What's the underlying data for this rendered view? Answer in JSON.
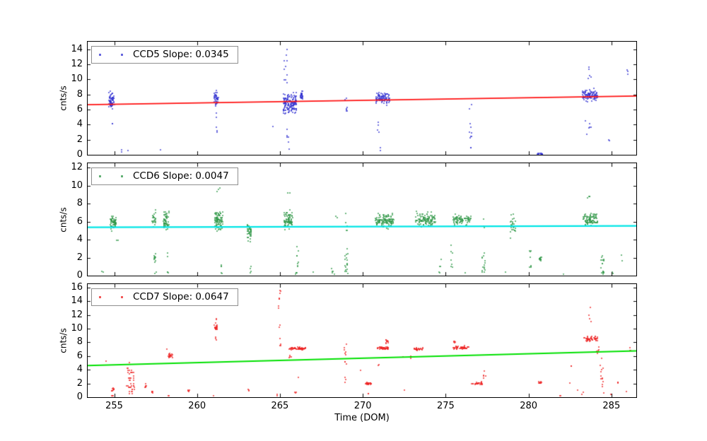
{
  "chart_data": {
    "type": "scatter",
    "title": "",
    "x_axis": {
      "label": "Time (DOM)",
      "min": 253.4,
      "max": 286.5,
      "ticks": [
        255,
        260,
        265,
        270,
        275,
        280,
        285
      ]
    },
    "grid": false,
    "legend_position": "upper-left",
    "panels": [
      {
        "id": "ccd5",
        "legend": "CCD5 Slope: 0.0345",
        "slope": 0.0345,
        "ylabel": "cnts/s",
        "ymin": 0,
        "ymax": 15,
        "yticks": [
          0,
          2,
          4,
          6,
          8,
          10,
          12,
          14
        ],
        "marker_color": "#3232d2",
        "fit_line": {
          "color": "#ff1212",
          "width": 1.7,
          "y_at_xmin": 6.65,
          "y_at_xmax": 7.8
        },
        "clusters": [
          [
            254.85,
            0.18,
            7.2,
            1.0,
            65,
            "g"
          ],
          [
            254.9,
            0.08,
            4.0,
            0.3,
            2,
            "u"
          ],
          [
            255.45,
            0.05,
            0.6,
            0.3,
            2,
            "u"
          ],
          [
            255.8,
            0.02,
            0.55,
            0.1,
            1,
            "g"
          ],
          [
            257.8,
            0.03,
            0.5,
            0.15,
            1,
            "g"
          ],
          [
            261.15,
            0.13,
            7.6,
            0.95,
            40,
            "g"
          ],
          [
            261.15,
            0.07,
            4.2,
            1.6,
            5,
            "u"
          ],
          [
            264.6,
            0.04,
            3.7,
            0.2,
            1,
            "g"
          ],
          [
            265.6,
            0.42,
            6.8,
            1.35,
            150,
            "g"
          ],
          [
            265.35,
            0.1,
            11.8,
            2.5,
            10,
            "u"
          ],
          [
            265.5,
            0.1,
            1.9,
            1.7,
            6,
            "u"
          ],
          [
            266.3,
            0.07,
            7.9,
            0.55,
            30,
            "g"
          ],
          [
            269.0,
            0.06,
            6.2,
            3.3,
            7,
            "u"
          ],
          [
            271.2,
            0.42,
            7.5,
            0.8,
            90,
            "g"
          ],
          [
            270.95,
            0.08,
            3.6,
            0.8,
            4,
            "u"
          ],
          [
            271.05,
            0.04,
            0.7,
            0.3,
            2,
            "u"
          ],
          [
            276.5,
            0.06,
            3.0,
            2.5,
            9,
            "u"
          ],
          [
            276.5,
            0.05,
            6.3,
            0.5,
            2,
            "u"
          ],
          [
            283.7,
            0.45,
            7.9,
            0.72,
            95,
            "g"
          ],
          [
            283.7,
            0.1,
            11.0,
            1.2,
            5,
            "u"
          ],
          [
            286.0,
            0.12,
            10.8,
            0.9,
            3,
            "u"
          ],
          [
            283.6,
            0.25,
            3.0,
            1.7,
            6,
            "u"
          ],
          [
            280.7,
            0.16,
            0.12,
            0.08,
            14,
            "g"
          ],
          [
            284.9,
            0.05,
            1.5,
            0.6,
            2,
            "u"
          ]
        ]
      },
      {
        "id": "ccd6",
        "legend": "CCD6 Slope: 0.0047",
        "slope": 0.0047,
        "ylabel": "cnts/s",
        "ymin": 0,
        "ymax": 12.5,
        "yticks": [
          0,
          2,
          4,
          6,
          8,
          10,
          12
        ],
        "marker_color": "#2e9646",
        "fit_line": {
          "color": "#00e5e5",
          "width": 2.2,
          "y_at_xmin": 5.38,
          "y_at_xmax": 5.54
        },
        "clusters": [
          [
            254.3,
            0.05,
            0.35,
            0.2,
            2,
            "u"
          ],
          [
            254.95,
            0.17,
            6.0,
            0.8,
            60,
            "g"
          ],
          [
            255.2,
            0.05,
            3.85,
            0.15,
            2,
            "u"
          ],
          [
            257.4,
            0.1,
            6.4,
            0.9,
            22,
            "g"
          ],
          [
            257.45,
            0.07,
            1.9,
            0.5,
            12,
            "g"
          ],
          [
            257.5,
            0.04,
            0.4,
            0.2,
            2,
            "u"
          ],
          [
            258.15,
            0.17,
            6.2,
            1.05,
            55,
            "g"
          ],
          [
            258.2,
            0.08,
            1.4,
            1.2,
            5,
            "u"
          ],
          [
            261.3,
            0.24,
            6.1,
            1.15,
            85,
            "g"
          ],
          [
            261.3,
            0.1,
            9.6,
            0.35,
            3,
            "u"
          ],
          [
            261.45,
            0.06,
            0.8,
            0.65,
            5,
            "u"
          ],
          [
            263.15,
            0.12,
            4.8,
            0.95,
            45,
            "g"
          ],
          [
            263.2,
            0.06,
            0.7,
            0.5,
            4,
            "u"
          ],
          [
            265.5,
            0.26,
            6.3,
            1.05,
            75,
            "g"
          ],
          [
            265.5,
            0.1,
            9.3,
            0.3,
            2,
            "u"
          ],
          [
            266.05,
            0.05,
            1.8,
            1.6,
            8,
            "u"
          ],
          [
            266.0,
            0.06,
            0.3,
            0.2,
            5,
            "g"
          ],
          [
            267.0,
            0.04,
            0.3,
            0.15,
            1,
            "g"
          ],
          [
            268.15,
            0.06,
            0.6,
            0.45,
            4,
            "u"
          ],
          [
            268.4,
            0.05,
            6.6,
            0.4,
            2,
            "u"
          ],
          [
            268.3,
            0.04,
            0.25,
            0.12,
            1,
            "g"
          ],
          [
            269.0,
            0.1,
            1.6,
            1.4,
            18,
            "u"
          ],
          [
            269.0,
            0.06,
            6.0,
            1.0,
            5,
            "u"
          ],
          [
            271.3,
            0.55,
            6.1,
            0.68,
            120,
            "g"
          ],
          [
            273.8,
            0.6,
            6.2,
            0.68,
            110,
            "g"
          ],
          [
            274.65,
            0.07,
            1.0,
            0.8,
            5,
            "u"
          ],
          [
            276.0,
            0.55,
            6.2,
            0.62,
            80,
            "g"
          ],
          [
            275.35,
            0.08,
            2.1,
            1.3,
            7,
            "u"
          ],
          [
            276.15,
            0.04,
            0.3,
            0.15,
            1,
            "g"
          ],
          [
            277.3,
            0.12,
            1.7,
            1.4,
            14,
            "u"
          ],
          [
            277.3,
            0.06,
            5.9,
            0.6,
            3,
            "u"
          ],
          [
            278.6,
            0.04,
            0.5,
            0.25,
            1,
            "g"
          ],
          [
            279.05,
            0.15,
            5.6,
            1.15,
            25,
            "g"
          ],
          [
            280.1,
            0.06,
            1.6,
            1.2,
            8,
            "u"
          ],
          [
            280.7,
            0.07,
            1.85,
            0.3,
            12,
            "g"
          ],
          [
            282.1,
            0.04,
            0.4,
            0.2,
            1,
            "g"
          ],
          [
            283.75,
            0.45,
            6.2,
            0.68,
            90,
            "g"
          ],
          [
            283.6,
            0.12,
            8.7,
            0.45,
            4,
            "u"
          ],
          [
            284.45,
            0.1,
            1.3,
            1.0,
            12,
            "u"
          ],
          [
            284.5,
            0.06,
            0.3,
            0.18,
            6,
            "g"
          ],
          [
            285.1,
            0.05,
            0.5,
            0.35,
            2,
            "u"
          ],
          [
            285.6,
            0.06,
            2.0,
            0.4,
            2,
            "u"
          ]
        ]
      },
      {
        "id": "ccd7",
        "legend": "CCD7 Slope: 0.0647",
        "slope": 0.0647,
        "ylabel": "cnts/s",
        "ymin": 0,
        "ymax": 16.5,
        "yticks": [
          0,
          2,
          4,
          6,
          8,
          10,
          12,
          14,
          16
        ],
        "marker_color": "#ee2020",
        "fit_line": {
          "color": "#00e000",
          "width": 1.9,
          "y_at_xmin": 4.62,
          "y_at_xmax": 6.76
        },
        "clusters": [
          [
            254.5,
            0.03,
            5.3,
            0.2,
            1,
            "g"
          ],
          [
            254.95,
            0.1,
            1.1,
            0.25,
            10,
            "g"
          ],
          [
            254.9,
            0.05,
            0.15,
            0.08,
            3,
            "g"
          ],
          [
            255.9,
            0.03,
            5.15,
            0.1,
            1,
            "g"
          ],
          [
            256.0,
            0.25,
            2.4,
            1.9,
            40,
            "u",
            0.28
          ],
          [
            256.9,
            0.06,
            1.6,
            0.4,
            6,
            "u"
          ],
          [
            257.3,
            0.05,
            0.75,
            0.12,
            6,
            "g"
          ],
          [
            257.0,
            0.03,
            4.85,
            0.1,
            1,
            "g"
          ],
          [
            258.2,
            0.03,
            7.0,
            0.2,
            1,
            "g"
          ],
          [
            258.4,
            0.14,
            6.1,
            0.38,
            18,
            "g"
          ],
          [
            258.3,
            0.05,
            0.3,
            0.15,
            2,
            "u"
          ],
          [
            259.5,
            0.06,
            0.85,
            0.15,
            5,
            "g"
          ],
          [
            261.0,
            0.03,
            0.22,
            0.1,
            1,
            "g"
          ],
          [
            261.15,
            0.1,
            10.2,
            0.3,
            20,
            "g"
          ],
          [
            261.15,
            0.05,
            11.2,
            0.5,
            3,
            "u"
          ],
          [
            260.97,
            0.06,
            15.6,
            0.7,
            3,
            "u"
          ],
          [
            261.15,
            0.04,
            8.2,
            1.0,
            3,
            "u"
          ],
          [
            263.1,
            0.05,
            1.0,
            0.2,
            3,
            "g"
          ],
          [
            264.85,
            0.04,
            0.3,
            0.12,
            2,
            "g"
          ],
          [
            264.95,
            0.1,
            14.4,
            1.7,
            8,
            "u"
          ],
          [
            265.0,
            0.07,
            8.7,
            2.0,
            6,
            "u"
          ],
          [
            266.05,
            0.5,
            7.1,
            0.2,
            60,
            "g"
          ],
          [
            265.62,
            0.06,
            6.0,
            0.55,
            4,
            "u"
          ],
          [
            265.95,
            0.06,
            0.4,
            0.3,
            3,
            "u"
          ],
          [
            266.1,
            0.03,
            2.9,
            0.15,
            1,
            "g"
          ],
          [
            268.95,
            0.07,
            5.5,
            3.4,
            12,
            "u"
          ],
          [
            269.85,
            0.03,
            4.0,
            0.2,
            1,
            "g"
          ],
          [
            270.35,
            0.17,
            2.0,
            0.16,
            22,
            "g"
          ],
          [
            270.3,
            0.05,
            0.35,
            0.15,
            2,
            "u"
          ],
          [
            270.95,
            0.04,
            4.6,
            0.3,
            2,
            "u"
          ],
          [
            271.2,
            0.35,
            7.15,
            0.2,
            40,
            "g"
          ],
          [
            271.45,
            0.08,
            8.1,
            0.3,
            10,
            "g"
          ],
          [
            272.45,
            0.03,
            5.9,
            0.2,
            1,
            "g"
          ],
          [
            272.5,
            0.03,
            1.0,
            0.15,
            1,
            "g"
          ],
          [
            273.35,
            0.28,
            7.0,
            0.18,
            30,
            "g"
          ],
          [
            272.9,
            0.04,
            5.8,
            0.3,
            2,
            "u"
          ],
          [
            275.95,
            0.48,
            7.2,
            0.22,
            50,
            "g"
          ],
          [
            275.55,
            0.12,
            8.0,
            0.25,
            5,
            "u"
          ],
          [
            276.9,
            0.32,
            2.0,
            0.18,
            25,
            "g"
          ],
          [
            277.35,
            0.08,
            3.6,
            1.0,
            5,
            "u"
          ],
          [
            280.7,
            0.08,
            2.1,
            0.22,
            10,
            "g"
          ],
          [
            281.9,
            0.05,
            0.2,
            0.1,
            2,
            "g"
          ],
          [
            282.55,
            0.05,
            4.3,
            0.3,
            2,
            "u"
          ],
          [
            282.5,
            0.04,
            1.9,
            0.2,
            1,
            "g"
          ],
          [
            283.3,
            0.1,
            0.5,
            0.3,
            2,
            "u"
          ],
          [
            283.0,
            0.04,
            0.9,
            0.2,
            1,
            "g"
          ],
          [
            283.75,
            0.42,
            8.5,
            0.38,
            45,
            "g"
          ],
          [
            283.7,
            0.1,
            12.2,
            1.2,
            4,
            "u"
          ],
          [
            284.2,
            0.08,
            6.8,
            0.5,
            5,
            "u"
          ],
          [
            284.45,
            0.12,
            3.4,
            3.0,
            13,
            "u"
          ],
          [
            285.4,
            0.05,
            2.1,
            0.3,
            3,
            "g"
          ],
          [
            285.0,
            0.05,
            0.3,
            0.18,
            2,
            "u"
          ],
          [
            286.15,
            0.1,
            7.3,
            0.5,
            3,
            "u"
          ],
          [
            285.9,
            0.04,
            0.9,
            0.2,
            1,
            "g"
          ]
        ]
      }
    ]
  }
}
